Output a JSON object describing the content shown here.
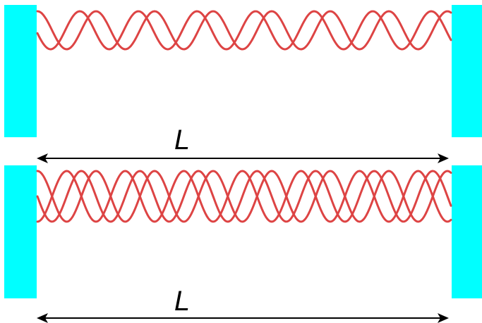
{
  "colors": {
    "mirror": "#00ffff",
    "wave": "#dd4444",
    "dimension": "#000000"
  },
  "panels": [
    {
      "wave_count": 2,
      "length_label": "L"
    },
    {
      "wave_count": 3,
      "length_label": "L"
    }
  ]
}
